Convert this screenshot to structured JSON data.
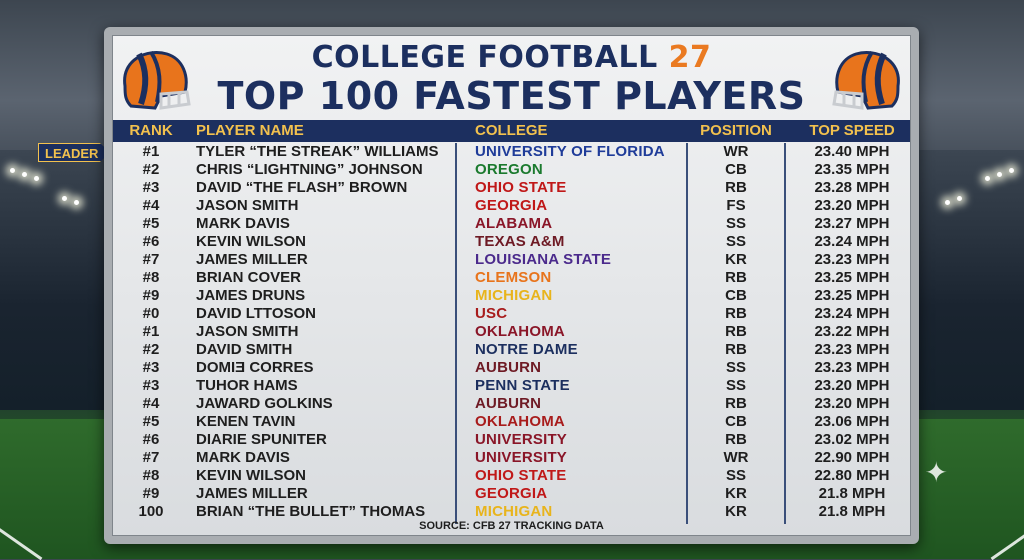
{
  "title": {
    "line1_prefix": "COLLEGE FOOTBALL ",
    "line1_number": "27",
    "line2": "TOP 100 FASTEST PLAYERS"
  },
  "columns": {
    "rank": "RANK",
    "name": "PLAYER NAME",
    "college": "COLLEGE",
    "position": "POSITION",
    "speed": "TOP SPEED"
  },
  "leader_label": "LEADER",
  "source": "SOURCE: CFB 27 TRACKING DATA",
  "colors": {
    "navy": "#1c2f5f",
    "gold": "#f2c14e",
    "orange": "#ea7a21"
  },
  "icons": [
    "football-helmet-icon",
    "sparkle-icon"
  ],
  "players": [
    {
      "rank": "#1",
      "name": "TYLER “THE STREAK” WILLIAMS",
      "college": "UNIVERSITY OF FLORIDA",
      "college_color": "#1f3c99",
      "position": "WR",
      "speed": "23.40 MPH"
    },
    {
      "rank": "#2",
      "name": "CHRIS “LIGHTNING” JOHNSON",
      "college": "OREGON",
      "college_color": "#1b7a2e",
      "position": "CB",
      "speed": "23.35 MPH"
    },
    {
      "rank": "#3",
      "name": "DAVID “THE FLASH” BROWN",
      "college": "OHIO STATE",
      "college_color": "#c01818",
      "position": "RB",
      "speed": "23.28 MPH"
    },
    {
      "rank": "#4",
      "name": "JASON SMITH",
      "college": "GEORGIA",
      "college_color": "#c01818",
      "position": "FS",
      "speed": "23.20 MPH"
    },
    {
      "rank": "#5",
      "name": "MARK DAVIS",
      "college": "ALABAMA",
      "college_color": "#8a1628",
      "position": "SS",
      "speed": "23.27 MPH"
    },
    {
      "rank": "#6",
      "name": "KEVIN WILSON",
      "college": "TEXAS A&M",
      "college_color": "#6e1a24",
      "position": "SS",
      "speed": "23.24 MPH"
    },
    {
      "rank": "#7",
      "name": "JAMES MILLER",
      "college": "LOUISIANA STATE",
      "college_color": "#4b2a8c",
      "position": "KR",
      "speed": "23.23 MPH"
    },
    {
      "rank": "#8",
      "name": "BRIAN COVER",
      "college": "CLEMSON",
      "college_color": "#e8741c",
      "position": "RB",
      "speed": "23.25 MPH"
    },
    {
      "rank": "#9",
      "name": "JAMES DRUNS",
      "college": "MICHIGAN",
      "college_color": "#e8b41c",
      "position": "CB",
      "speed": "23.25 MPH"
    },
    {
      "rank": "#0",
      "name": "DAVID LTTOSON",
      "college": "USC",
      "college_color": "#a81c1c",
      "position": "RB",
      "speed": "23.24 MPH"
    },
    {
      "rank": "#1",
      "name": "JASON SMITH",
      "college": "OKLAHOMA",
      "college_color": "#8a1628",
      "position": "RB",
      "speed": "23.22 MPH"
    },
    {
      "rank": "#2",
      "name": "DAVID SMITH",
      "college": "NOTRE DAME",
      "college_color": "#1c2f5f",
      "position": "RB",
      "speed": "23.23 MPH"
    },
    {
      "rank": "#3",
      "name": "DOMIƎ CORRES",
      "college": "AUBURN",
      "college_color": "#6e1a24",
      "position": "SS",
      "speed": "23.23 MPH"
    },
    {
      "rank": "#3",
      "name": "TUHOR HAMS",
      "college": "PENN STATE",
      "college_color": "#1c2f5f",
      "position": "SS",
      "speed": "23.20 MPH"
    },
    {
      "rank": "#4",
      "name": "JAWARD GOLKINS",
      "college": "AUBURN",
      "college_color": "#6e1a24",
      "position": "RB",
      "speed": "23.20 MPH"
    },
    {
      "rank": "#5",
      "name": "KENEN TAVIN",
      "college": "OKLAHOMA",
      "college_color": "#a81c1c",
      "position": "CB",
      "speed": "23.06 MPH"
    },
    {
      "rank": "#6",
      "name": "DIARIE SPUNITER",
      "college": "UNIVERSITY",
      "college_color": "#8a1628",
      "position": "RB",
      "speed": "23.02 MPH"
    },
    {
      "rank": "#7",
      "name": "MARK DAVIS",
      "college": "UNIVERSITY",
      "college_color": "#8a1628",
      "position": "WR",
      "speed": "22.90 MPH"
    },
    {
      "rank": "#8",
      "name": "KEVIN WILSON",
      "college": "OHIO STATE",
      "college_color": "#c01818",
      "position": "SS",
      "speed": "22.80 MPH"
    },
    {
      "rank": "#9",
      "name": "JAMES MILLER",
      "college": "GEORGIA",
      "college_color": "#c01818",
      "position": "KR",
      "speed": "21.8 MPH"
    },
    {
      "rank": "100",
      "name": "BRIAN “THE BULLET” THOMAS",
      "college": "MICHIGAN",
      "college_color": "#e8b41c",
      "position": "KR",
      "speed": "21.8 MPH"
    }
  ]
}
